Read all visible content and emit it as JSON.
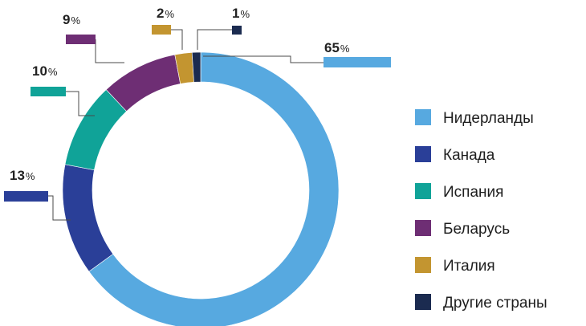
{
  "chart_data": {
    "type": "pie",
    "donut": true,
    "legend_position": "right",
    "slices": [
      {
        "label": "Нидерланды",
        "value": 65,
        "display": "65",
        "unit": "%",
        "color": "#57a9e0"
      },
      {
        "label": "Канада",
        "value": 13,
        "display": "13",
        "unit": "%",
        "color": "#2a3f98"
      },
      {
        "label": "Испания",
        "value": 10,
        "display": "10",
        "unit": "%",
        "color": "#10a398"
      },
      {
        "label": "Беларусь",
        "value": 9,
        "display": "9",
        "unit": "%",
        "color": "#6e2e74"
      },
      {
        "label": "Италия",
        "value": 2,
        "display": "2",
        "unit": "%",
        "color": "#c39530"
      },
      {
        "label": "Другие страны",
        "value": 1,
        "display": "1",
        "unit": "%",
        "color": "#1b2b50"
      }
    ]
  }
}
